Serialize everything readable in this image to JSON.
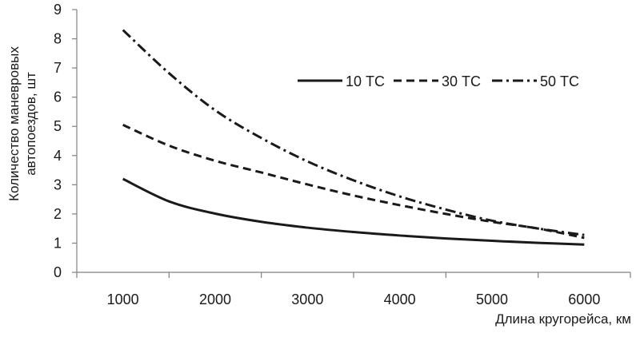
{
  "chart_data": {
    "type": "line",
    "title": "",
    "xlabel": "Длина кругорейса, км",
    "ylabel_lines": [
      "Количество маневровых",
      "автопоездов, шт"
    ],
    "xlim": [
      500,
      6500
    ],
    "ylim": [
      0,
      9
    ],
    "x_ticks": [
      1000,
      2000,
      3000,
      4000,
      5000,
      6000
    ],
    "y_ticks": [
      0,
      1,
      2,
      3,
      4,
      5,
      6,
      7,
      8,
      9
    ],
    "grid": false,
    "legend_position": "top-right",
    "x": [
      1000,
      1500,
      2000,
      2500,
      3000,
      3500,
      4000,
      4500,
      5000,
      5500,
      6000
    ],
    "series": [
      {
        "name": "10 ТС",
        "style": "solid",
        "values": [
          3.2,
          2.43,
          2.01,
          1.73,
          1.53,
          1.38,
          1.26,
          1.16,
          1.08,
          1.01,
          0.95
        ]
      },
      {
        "name": "30 ТС",
        "style": "dashed",
        "values": [
          5.05,
          4.34,
          3.82,
          3.42,
          3.01,
          2.63,
          2.3,
          2.0,
          1.73,
          1.5,
          1.18
        ]
      },
      {
        "name": "50 ТС",
        "style": "dashdot",
        "values": [
          8.3,
          6.82,
          5.55,
          4.6,
          3.8,
          3.15,
          2.6,
          2.15,
          1.77,
          1.5,
          1.28
        ]
      }
    ],
    "colors": {
      "line": "#1a1a1a",
      "axis": "#808080"
    }
  }
}
